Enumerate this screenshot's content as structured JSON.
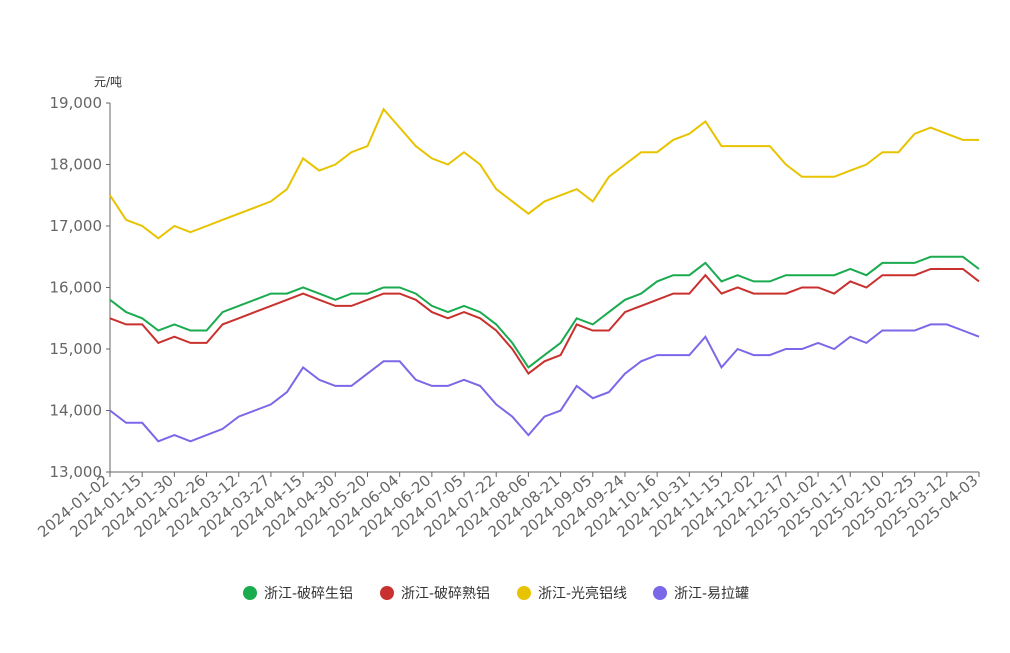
{
  "chart_data": {
    "type": "line",
    "y_unit": "元/吨",
    "categories": [
      "2024-01-02",
      null,
      "2024-01-15",
      null,
      "2024-01-30",
      null,
      "2024-02-26",
      null,
      "2024-03-12",
      null,
      "2024-03-27",
      null,
      "2024-04-15",
      null,
      "2024-04-30",
      null,
      "2024-05-20",
      null,
      "2024-06-04",
      null,
      "2024-06-20",
      null,
      "2024-07-05",
      null,
      "2024-07-22",
      null,
      "2024-08-06",
      null,
      "2024-08-21",
      null,
      "2024-09-05",
      null,
      "2024-09-24",
      null,
      "2024-10-16",
      null,
      "2024-10-31",
      null,
      "2024-11-15",
      null,
      "2024-12-02",
      null,
      "2024-12-17",
      null,
      "2025-01-02",
      null,
      "2025-01-17",
      null,
      "2025-02-10",
      null,
      "2025-02-25",
      null,
      "2025-03-12",
      null,
      "2025-04-03"
    ],
    "series": [
      {
        "name": "浙江-破碎生铝",
        "color": "#1aab4f",
        "values": [
          15800,
          15600,
          15500,
          15300,
          15400,
          15300,
          15300,
          15600,
          15700,
          15800,
          15900,
          15900,
          16000,
          15900,
          15800,
          15900,
          15900,
          16000,
          16000,
          15900,
          15700,
          15600,
          15700,
          15600,
          15400,
          15100,
          14700,
          14900,
          15100,
          15500,
          15400,
          15600,
          15800,
          15900,
          16100,
          16200,
          16200,
          16400,
          16100,
          16200,
          16100,
          16100,
          16200,
          16200,
          16200,
          16200,
          16300,
          16200,
          16400,
          16400,
          16400,
          16500,
          16500,
          16500,
          16300
        ]
      },
      {
        "name": "浙江-破碎熟铝",
        "color": "#c9312f",
        "values": [
          15500,
          15400,
          15400,
          15100,
          15200,
          15100,
          15100,
          15400,
          15500,
          15600,
          15700,
          15800,
          15900,
          15800,
          15700,
          15700,
          15800,
          15900,
          15900,
          15800,
          15600,
          15500,
          15600,
          15500,
          15300,
          15000,
          14600,
          14800,
          14900,
          15400,
          15300,
          15300,
          15600,
          15700,
          15800,
          15900,
          15900,
          16200,
          15900,
          16000,
          15900,
          15900,
          15900,
          16000,
          16000,
          15900,
          16100,
          16000,
          16200,
          16200,
          16200,
          16300,
          16300,
          16300,
          16100
        ]
      },
      {
        "name": "浙江-光亮铝线",
        "color": "#e8c300",
        "values": [
          17500,
          17100,
          17000,
          16800,
          17000,
          16900,
          17000,
          17100,
          17200,
          17300,
          17400,
          17600,
          18100,
          17900,
          18000,
          18200,
          18300,
          18900,
          18600,
          18300,
          18100,
          18000,
          18200,
          18000,
          17600,
          17400,
          17200,
          17400,
          17500,
          17600,
          17400,
          17800,
          18000,
          18200,
          18200,
          18400,
          18500,
          18700,
          18300,
          18300,
          18300,
          18300,
          18000,
          17800,
          17800,
          17800,
          17900,
          18000,
          18200,
          18200,
          18500,
          18600,
          18500,
          18400,
          18400
        ]
      },
      {
        "name": "浙江-易拉罐",
        "color": "#7b68e8",
        "values": [
          14000,
          13800,
          13800,
          13500,
          13600,
          13500,
          13600,
          13700,
          13900,
          14000,
          14100,
          14300,
          14700,
          14500,
          14400,
          14400,
          14600,
          14800,
          14800,
          14500,
          14400,
          14400,
          14500,
          14400,
          14100,
          13900,
          13600,
          13900,
          14000,
          14400,
          14200,
          14300,
          14600,
          14800,
          14900,
          14900,
          14900,
          15200,
          14700,
          15000,
          14900,
          14900,
          15000,
          15000,
          15100,
          15000,
          15200,
          15100,
          15300,
          15300,
          15300,
          15400,
          15400,
          15300,
          15200
        ]
      }
    ],
    "ylim": [
      13000,
      19000
    ],
    "yticks": [
      {
        "value": 13000,
        "label": "13,000"
      },
      {
        "value": 14000,
        "label": "14,000"
      },
      {
        "value": 15000,
        "label": "15,000"
      },
      {
        "value": 16000,
        "label": "16,000"
      },
      {
        "value": 17000,
        "label": "17,000"
      },
      {
        "value": 18000,
        "label": "18,000"
      },
      {
        "value": 19000,
        "label": "19,000"
      }
    ],
    "legend": "bottom"
  }
}
